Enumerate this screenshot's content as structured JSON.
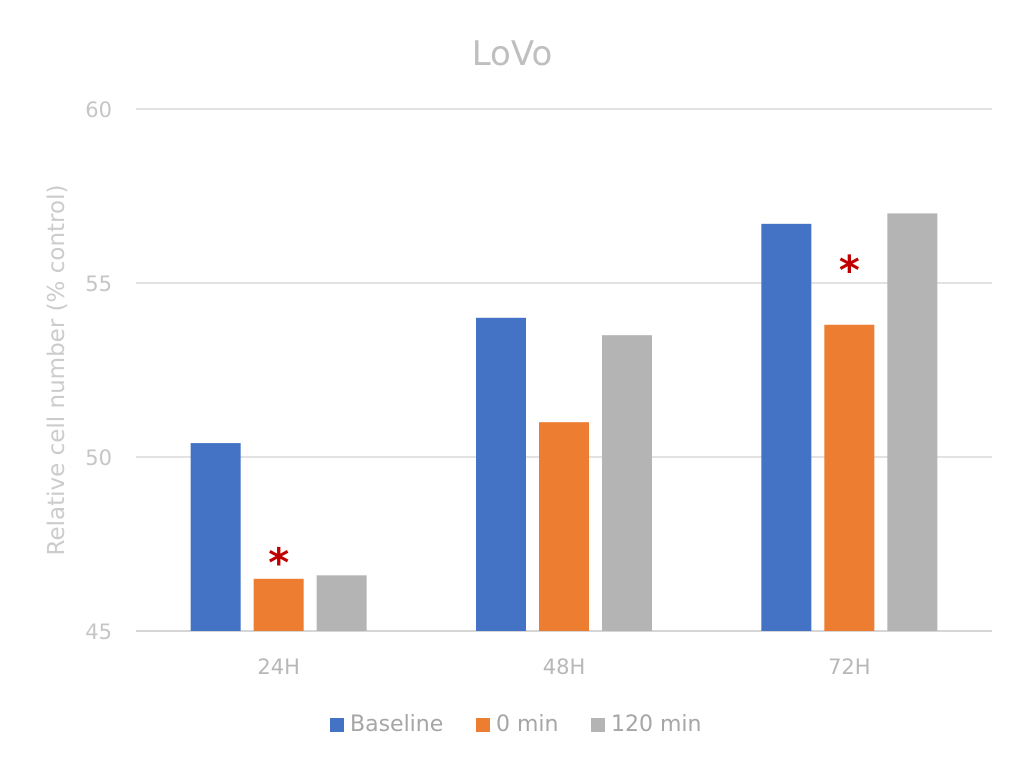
{
  "chart_data": {
    "type": "bar",
    "title": "LoVo",
    "xlabel": "",
    "ylabel": "Relative cell number (% control)",
    "categories": [
      "24H",
      "48H",
      "72H"
    ],
    "ylim": [
      45,
      60
    ],
    "yticks": [
      45,
      50,
      55,
      60
    ],
    "grid": true,
    "legend_position": "bottom",
    "series": [
      {
        "name": "Baseline",
        "color": "#4472c4",
        "values": [
          50.4,
          54.0,
          56.7
        ]
      },
      {
        "name": "0 min",
        "color": "#ed7d31",
        "values": [
          46.5,
          51.0,
          53.8
        ]
      },
      {
        "name": "120 min",
        "color": "#b4b4b4",
        "values": [
          46.6,
          53.5,
          57.0
        ]
      }
    ],
    "annotations": [
      {
        "text": "*",
        "category": "24H",
        "series": "0 min",
        "y": 47.2
      },
      {
        "text": "*",
        "category": "72H",
        "series": "0 min",
        "y": 55.6
      }
    ]
  }
}
